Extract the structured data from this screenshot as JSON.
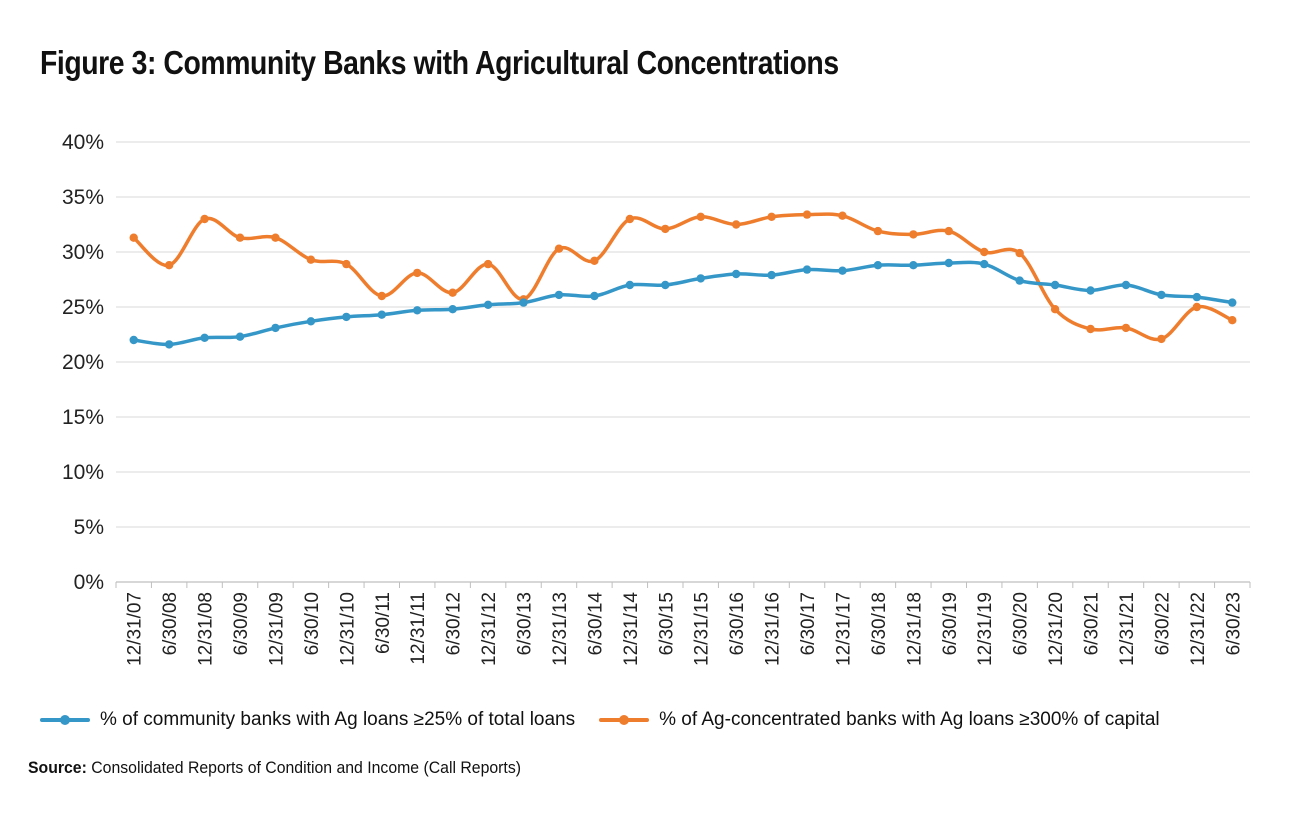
{
  "title": "Figure 3: Community Banks with Agricultural Concentrations",
  "source": {
    "label": "Source:",
    "text": "Consolidated Reports of Condition and Income (Call Reports)"
  },
  "colors": {
    "series1": "#3597c8",
    "series2": "#ef7d2e",
    "grid": "#d9d9d9",
    "axis": "#bfbfbf"
  },
  "chart_data": {
    "type": "line",
    "title": "Figure 3: Community Banks with Agricultural Concentrations",
    "xlabel": "",
    "ylabel": "",
    "ylim": [
      0,
      40
    ],
    "yticks": [
      "0%",
      "5%",
      "10%",
      "15%",
      "20%",
      "25%",
      "30%",
      "35%",
      "40%"
    ],
    "grid": true,
    "legend_position": "bottom",
    "categories": [
      "12/31/07",
      "6/30/08",
      "12/31/08",
      "6/30/09",
      "12/31/09",
      "6/30/10",
      "12/31/10",
      "6/30/11",
      "12/31/11",
      "6/30/12",
      "12/31/12",
      "6/30/13",
      "12/31/13",
      "6/30/14",
      "12/31/14",
      "6/30/15",
      "12/31/15",
      "6/30/16",
      "12/31/16",
      "6/30/17",
      "12/31/17",
      "6/30/18",
      "12/31/18",
      "6/30/19",
      "12/31/19",
      "6/30/20",
      "12/31/20",
      "6/30/21",
      "12/31/21",
      "6/30/22",
      "12/31/22",
      "6/30/23"
    ],
    "series": [
      {
        "name": "% of community banks with Ag loans ≥25% of total loans",
        "color": "#3597c8",
        "values": [
          22.0,
          21.6,
          22.2,
          22.3,
          23.1,
          23.7,
          24.1,
          24.3,
          24.7,
          24.8,
          25.2,
          25.4,
          26.1,
          26.0,
          27.0,
          27.0,
          27.6,
          28.0,
          27.9,
          28.4,
          28.3,
          28.8,
          28.8,
          29.0,
          28.9,
          27.4,
          27.0,
          26.5,
          27.0,
          26.1,
          25.9,
          25.4
        ]
      },
      {
        "name": "% of Ag-concentrated banks with Ag loans ≥300% of capital",
        "color": "#ef7d2e",
        "values": [
          31.3,
          28.8,
          33.0,
          31.3,
          31.3,
          29.3,
          28.9,
          26.0,
          28.1,
          26.3,
          28.9,
          25.7,
          30.3,
          29.2,
          33.0,
          32.1,
          33.2,
          32.5,
          33.2,
          33.4,
          33.3,
          31.9,
          31.6,
          31.9,
          30.0,
          29.9,
          24.8,
          23.0,
          23.1,
          22.1,
          25.0,
          23.8
        ]
      }
    ]
  }
}
